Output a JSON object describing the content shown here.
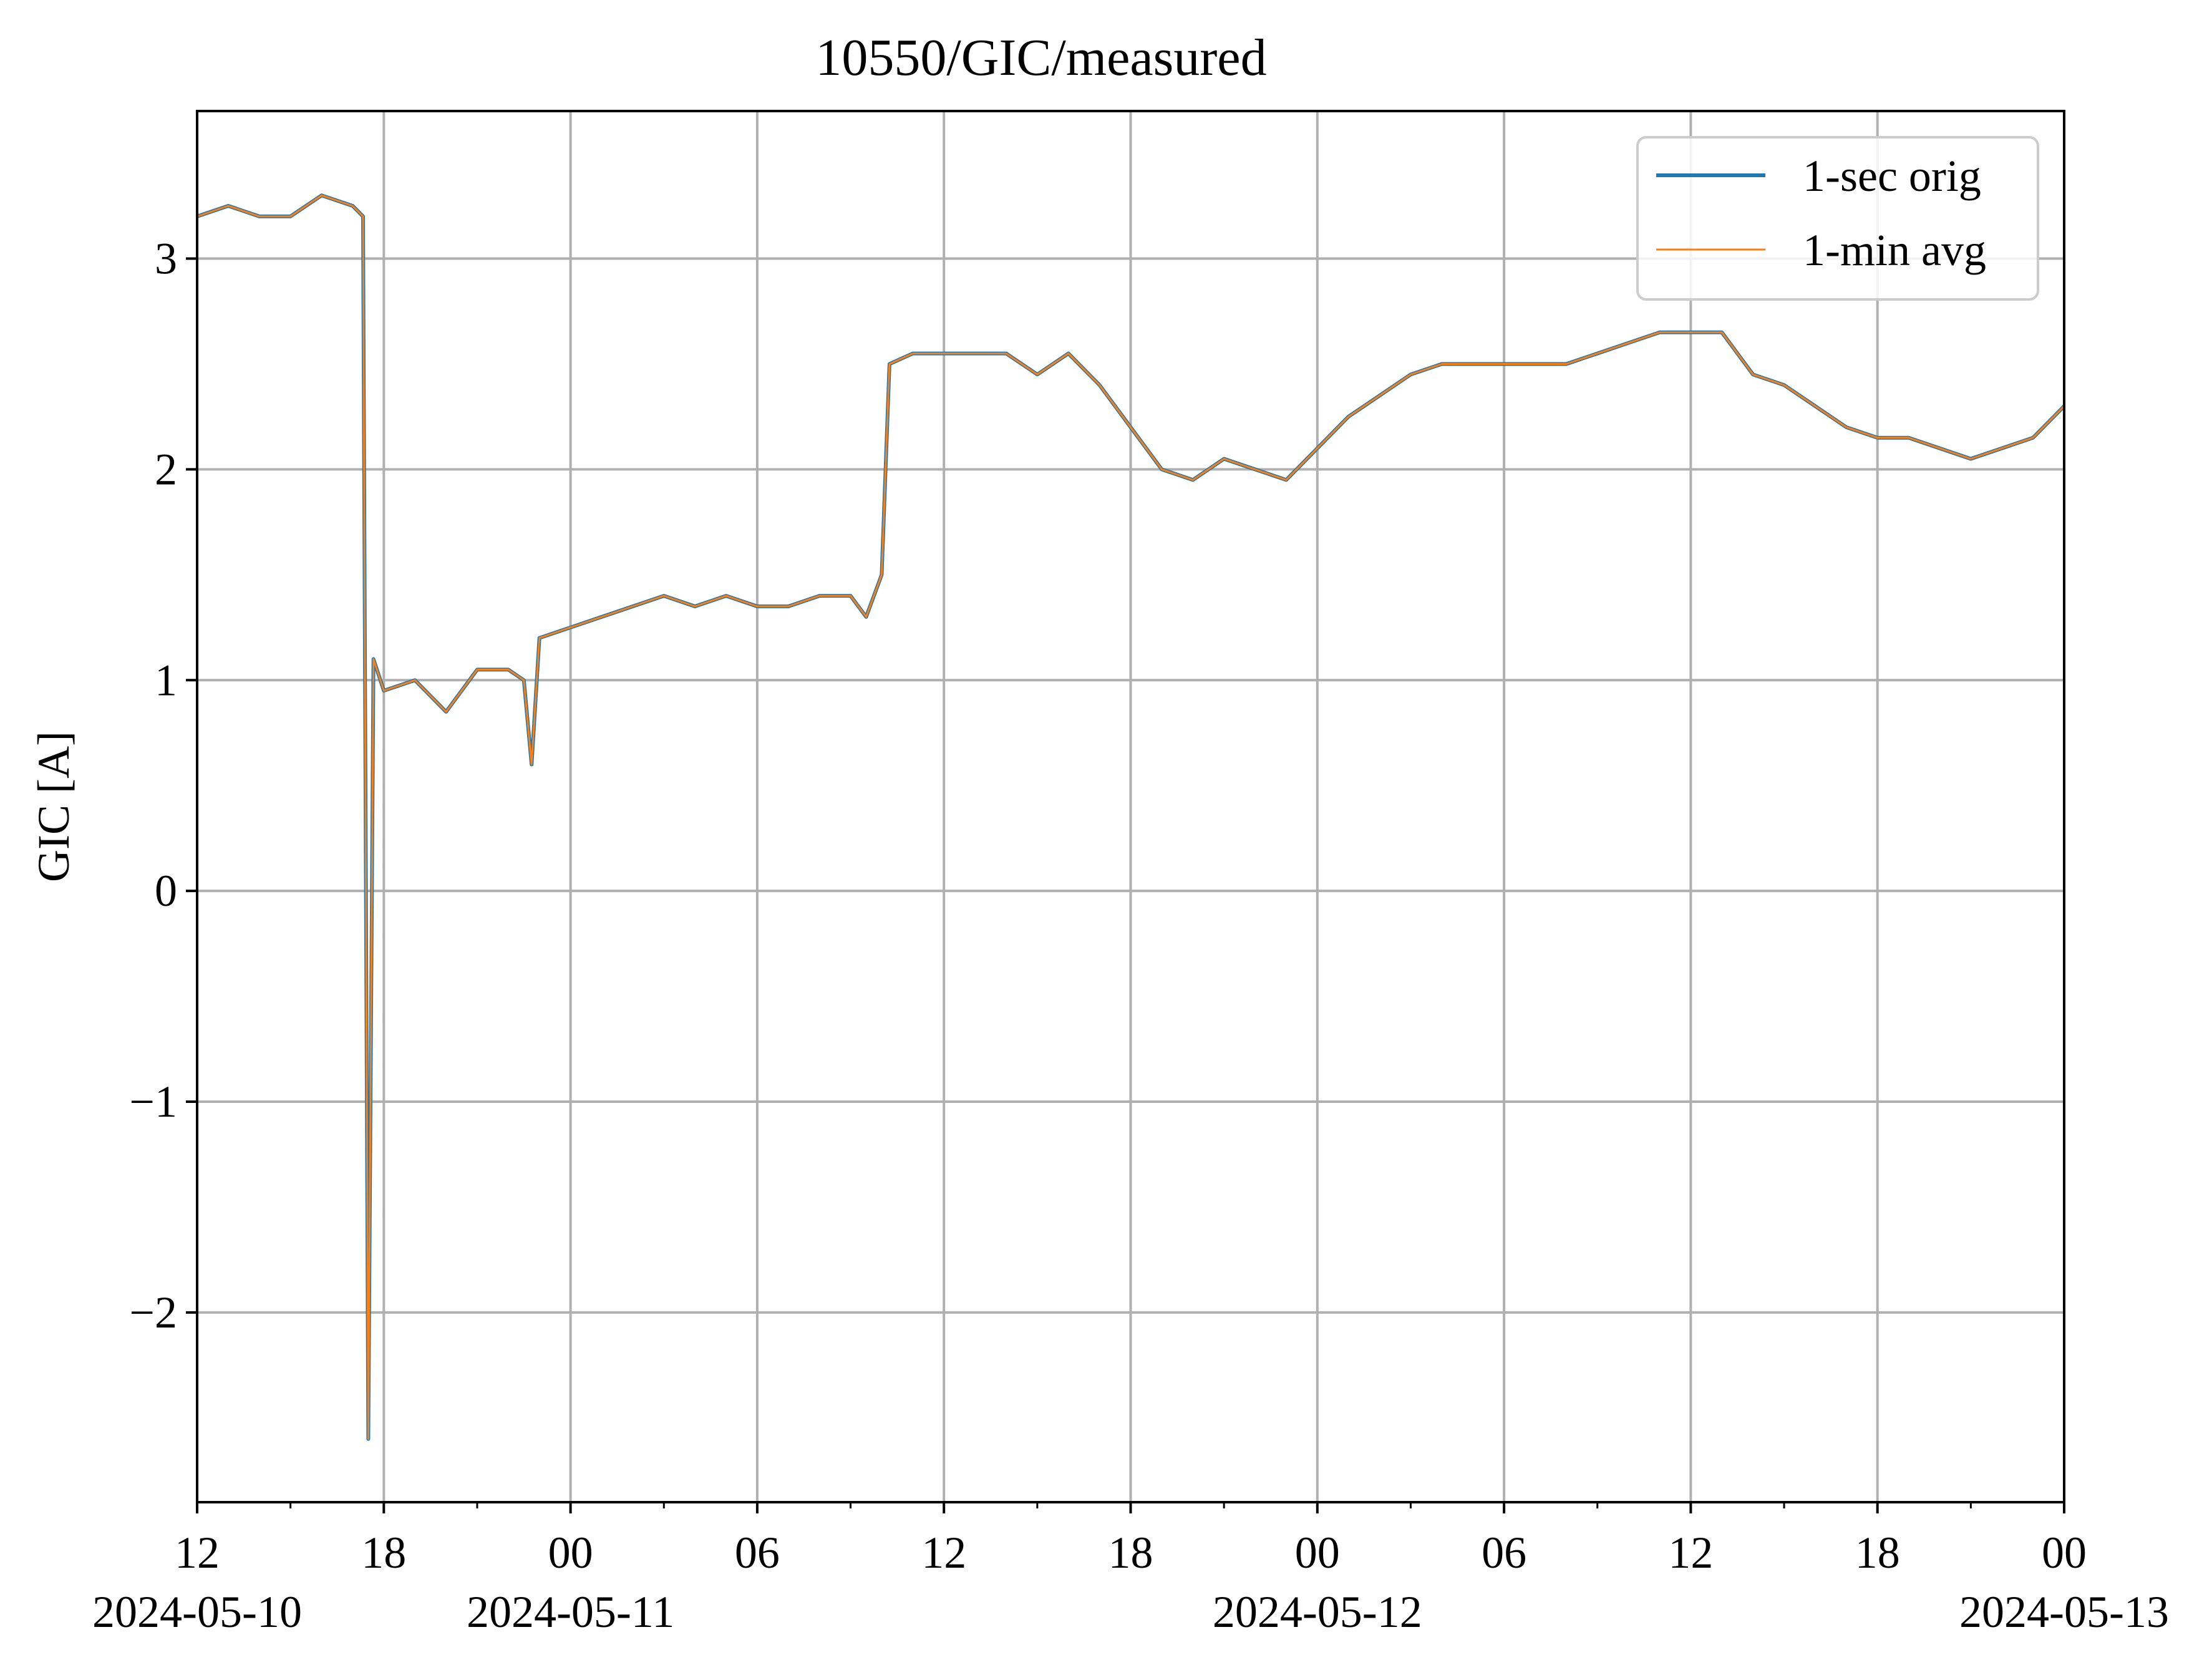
{
  "chart_data": {
    "type": "line",
    "title": "10550/GIC/measured",
    "xlabel": "",
    "ylabel": "GIC [A]",
    "x_range": [
      "2024-05-10T12:00",
      "2024-05-13T00:00"
    ],
    "ylim": [
      -2.9,
      3.7
    ],
    "grid": true,
    "legend_position": "upper right",
    "x_major_ticks": [
      {
        "x": "2024-05-10T12:00",
        "hour": "12",
        "date": "2024-05-10"
      },
      {
        "x": "2024-05-10T18:00",
        "hour": "18",
        "date": ""
      },
      {
        "x": "2024-05-11T00:00",
        "hour": "00",
        "date": "2024-05-11"
      },
      {
        "x": "2024-05-11T06:00",
        "hour": "06",
        "date": ""
      },
      {
        "x": "2024-05-11T12:00",
        "hour": "12",
        "date": ""
      },
      {
        "x": "2024-05-11T18:00",
        "hour": "18",
        "date": ""
      },
      {
        "x": "2024-05-12T00:00",
        "hour": "00",
        "date": "2024-05-12"
      },
      {
        "x": "2024-05-12T06:00",
        "hour": "06",
        "date": ""
      },
      {
        "x": "2024-05-12T12:00",
        "hour": "12",
        "date": ""
      },
      {
        "x": "2024-05-12T18:00",
        "hour": "18",
        "date": ""
      },
      {
        "x": "2024-05-13T00:00",
        "hour": "00",
        "date": "2024-05-13"
      }
    ],
    "y_ticks": [
      {
        "value": 3,
        "label": "3"
      },
      {
        "value": 2,
        "label": "2"
      },
      {
        "value": 1,
        "label": "1"
      },
      {
        "value": 0,
        "label": "0"
      },
      {
        "value": -1,
        "label": "−1"
      },
      {
        "value": -2,
        "label": "−2"
      }
    ],
    "series": [
      {
        "name": "1-sec orig",
        "color": "#1f77b4",
        "points": [
          [
            "2024-05-10T12:00",
            3.2
          ],
          [
            "2024-05-10T13:00",
            3.25
          ],
          [
            "2024-05-10T14:00",
            3.2
          ],
          [
            "2024-05-10T15:00",
            3.2
          ],
          [
            "2024-05-10T16:00",
            3.3
          ],
          [
            "2024-05-10T17:00",
            3.25
          ],
          [
            "2024-05-10T17:20",
            3.2
          ],
          [
            "2024-05-10T17:30",
            -2.6
          ],
          [
            "2024-05-10T17:40",
            1.1
          ],
          [
            "2024-05-10T18:00",
            0.95
          ],
          [
            "2024-05-10T19:00",
            1.0
          ],
          [
            "2024-05-10T20:00",
            0.85
          ],
          [
            "2024-05-10T21:00",
            1.05
          ],
          [
            "2024-05-10T22:00",
            1.05
          ],
          [
            "2024-05-10T22:30",
            1.0
          ],
          [
            "2024-05-10T22:45",
            0.6
          ],
          [
            "2024-05-10T23:00",
            1.2
          ],
          [
            "2024-05-11T00:00",
            1.25
          ],
          [
            "2024-05-11T01:00",
            1.3
          ],
          [
            "2024-05-11T02:00",
            1.35
          ],
          [
            "2024-05-11T03:00",
            1.4
          ],
          [
            "2024-05-11T04:00",
            1.35
          ],
          [
            "2024-05-11T05:00",
            1.4
          ],
          [
            "2024-05-11T06:00",
            1.35
          ],
          [
            "2024-05-11T07:00",
            1.35
          ],
          [
            "2024-05-11T08:00",
            1.4
          ],
          [
            "2024-05-11T09:00",
            1.4
          ],
          [
            "2024-05-11T09:30",
            1.3
          ],
          [
            "2024-05-11T10:00",
            1.5
          ],
          [
            "2024-05-11T10:15",
            2.5
          ],
          [
            "2024-05-11T11:00",
            2.55
          ],
          [
            "2024-05-11T12:00",
            2.55
          ],
          [
            "2024-05-11T13:00",
            2.55
          ],
          [
            "2024-05-11T14:00",
            2.55
          ],
          [
            "2024-05-11T15:00",
            2.45
          ],
          [
            "2024-05-11T16:00",
            2.55
          ],
          [
            "2024-05-11T17:00",
            2.4
          ],
          [
            "2024-05-11T18:00",
            2.2
          ],
          [
            "2024-05-11T19:00",
            2.0
          ],
          [
            "2024-05-11T20:00",
            1.95
          ],
          [
            "2024-05-11T21:00",
            2.05
          ],
          [
            "2024-05-11T22:00",
            2.0
          ],
          [
            "2024-05-11T23:00",
            1.95
          ],
          [
            "2024-05-12T00:00",
            2.1
          ],
          [
            "2024-05-12T01:00",
            2.25
          ],
          [
            "2024-05-12T02:00",
            2.35
          ],
          [
            "2024-05-12T03:00",
            2.45
          ],
          [
            "2024-05-12T04:00",
            2.5
          ],
          [
            "2024-05-12T05:00",
            2.5
          ],
          [
            "2024-05-12T06:00",
            2.5
          ],
          [
            "2024-05-12T07:00",
            2.5
          ],
          [
            "2024-05-12T08:00",
            2.5
          ],
          [
            "2024-05-12T09:00",
            2.55
          ],
          [
            "2024-05-12T10:00",
            2.6
          ],
          [
            "2024-05-12T11:00",
            2.65
          ],
          [
            "2024-05-12T12:00",
            2.65
          ],
          [
            "2024-05-12T13:00",
            2.65
          ],
          [
            "2024-05-12T14:00",
            2.45
          ],
          [
            "2024-05-12T15:00",
            2.4
          ],
          [
            "2024-05-12T16:00",
            2.3
          ],
          [
            "2024-05-12T17:00",
            2.2
          ],
          [
            "2024-05-12T18:00",
            2.15
          ],
          [
            "2024-05-12T19:00",
            2.15
          ],
          [
            "2024-05-12T20:00",
            2.1
          ],
          [
            "2024-05-12T21:00",
            2.05
          ],
          [
            "2024-05-12T22:00",
            2.1
          ],
          [
            "2024-05-12T23:00",
            2.15
          ],
          [
            "2024-05-13T00:00",
            2.3
          ]
        ]
      },
      {
        "name": "1-min avg",
        "color": "#ff7f0e",
        "points": [
          [
            "2024-05-10T12:00",
            3.2
          ],
          [
            "2024-05-10T13:00",
            3.25
          ],
          [
            "2024-05-10T14:00",
            3.2
          ],
          [
            "2024-05-10T15:00",
            3.2
          ],
          [
            "2024-05-10T16:00",
            3.3
          ],
          [
            "2024-05-10T17:00",
            3.25
          ],
          [
            "2024-05-10T17:20",
            3.2
          ],
          [
            "2024-05-10T17:30",
            -2.6
          ],
          [
            "2024-05-10T17:40",
            1.1
          ],
          [
            "2024-05-10T18:00",
            0.95
          ],
          [
            "2024-05-10T19:00",
            1.0
          ],
          [
            "2024-05-10T20:00",
            0.85
          ],
          [
            "2024-05-10T21:00",
            1.05
          ],
          [
            "2024-05-10T22:00",
            1.05
          ],
          [
            "2024-05-10T22:30",
            1.0
          ],
          [
            "2024-05-10T22:45",
            0.6
          ],
          [
            "2024-05-10T23:00",
            1.2
          ],
          [
            "2024-05-11T00:00",
            1.25
          ],
          [
            "2024-05-11T01:00",
            1.3
          ],
          [
            "2024-05-11T02:00",
            1.35
          ],
          [
            "2024-05-11T03:00",
            1.4
          ],
          [
            "2024-05-11T04:00",
            1.35
          ],
          [
            "2024-05-11T05:00",
            1.4
          ],
          [
            "2024-05-11T06:00",
            1.35
          ],
          [
            "2024-05-11T07:00",
            1.35
          ],
          [
            "2024-05-11T08:00",
            1.4
          ],
          [
            "2024-05-11T09:00",
            1.4
          ],
          [
            "2024-05-11T09:30",
            1.3
          ],
          [
            "2024-05-11T10:00",
            1.5
          ],
          [
            "2024-05-11T10:15",
            2.5
          ],
          [
            "2024-05-11T11:00",
            2.55
          ],
          [
            "2024-05-11T12:00",
            2.55
          ],
          [
            "2024-05-11T13:00",
            2.55
          ],
          [
            "2024-05-11T14:00",
            2.55
          ],
          [
            "2024-05-11T15:00",
            2.45
          ],
          [
            "2024-05-11T16:00",
            2.55
          ],
          [
            "2024-05-11T17:00",
            2.4
          ],
          [
            "2024-05-11T18:00",
            2.2
          ],
          [
            "2024-05-11T19:00",
            2.0
          ],
          [
            "2024-05-11T20:00",
            1.95
          ],
          [
            "2024-05-11T21:00",
            2.05
          ],
          [
            "2024-05-11T22:00",
            2.0
          ],
          [
            "2024-05-11T23:00",
            1.95
          ],
          [
            "2024-05-12T00:00",
            2.1
          ],
          [
            "2024-05-12T01:00",
            2.25
          ],
          [
            "2024-05-12T02:00",
            2.35
          ],
          [
            "2024-05-12T03:00",
            2.45
          ],
          [
            "2024-05-12T04:00",
            2.5
          ],
          [
            "2024-05-12T05:00",
            2.5
          ],
          [
            "2024-05-12T06:00",
            2.5
          ],
          [
            "2024-05-12T07:00",
            2.5
          ],
          [
            "2024-05-12T08:00",
            2.5
          ],
          [
            "2024-05-12T09:00",
            2.55
          ],
          [
            "2024-05-12T10:00",
            2.6
          ],
          [
            "2024-05-12T11:00",
            2.65
          ],
          [
            "2024-05-12T12:00",
            2.65
          ],
          [
            "2024-05-12T13:00",
            2.65
          ],
          [
            "2024-05-12T14:00",
            2.45
          ],
          [
            "2024-05-12T15:00",
            2.4
          ],
          [
            "2024-05-12T16:00",
            2.3
          ],
          [
            "2024-05-12T17:00",
            2.2
          ],
          [
            "2024-05-12T18:00",
            2.15
          ],
          [
            "2024-05-12T19:00",
            2.15
          ],
          [
            "2024-05-12T20:00",
            2.1
          ],
          [
            "2024-05-12T21:00",
            2.05
          ],
          [
            "2024-05-12T22:00",
            2.1
          ],
          [
            "2024-05-12T23:00",
            2.15
          ],
          [
            "2024-05-13T00:00",
            2.3
          ]
        ]
      }
    ]
  }
}
